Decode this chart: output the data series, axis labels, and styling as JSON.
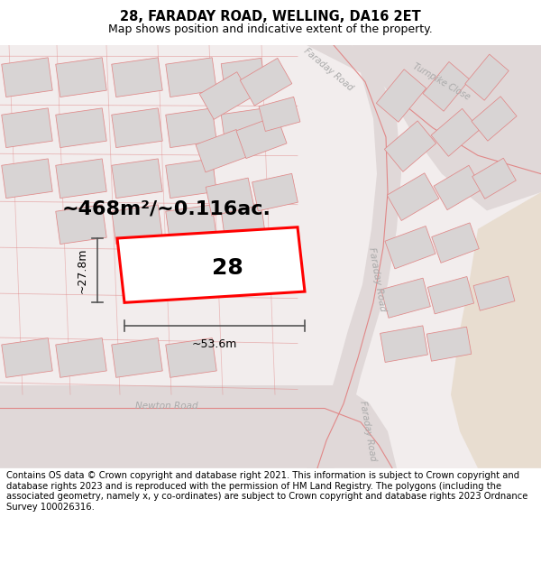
{
  "title": "28, FARADAY ROAD, WELLING, DA16 2ET",
  "subtitle": "Map shows position and indicative extent of the property.",
  "footer": "Contains OS data © Crown copyright and database right 2021. This information is subject to Crown copyright and database rights 2023 and is reproduced with the permission of HM Land Registry. The polygons (including the associated geometry, namely x, y co-ordinates) are subject to Crown copyright and database rights 2023 Ordnance Survey 100026316.",
  "area_text": "~468m²/~0.116ac.",
  "width_text": "~53.6m",
  "height_text": "~27.8m",
  "plot_label": "28",
  "map_bg": "#f2eded",
  "road_bg": "#e0d8d8",
  "block_fill": "#d8d4d4",
  "block_edge": "#e08888",
  "road_line": "#e08888",
  "plot_edge": "#ff0000",
  "plot_fill": "#ffffff",
  "dim_color": "#555555",
  "label_color": "#aaaaaa",
  "beige_color": "#e8ddd0",
  "title_fontsize": 10.5,
  "subtitle_fontsize": 9,
  "footer_fontsize": 7.2,
  "area_fontsize": 16,
  "dim_fontsize": 9,
  "plot_num_fontsize": 18
}
